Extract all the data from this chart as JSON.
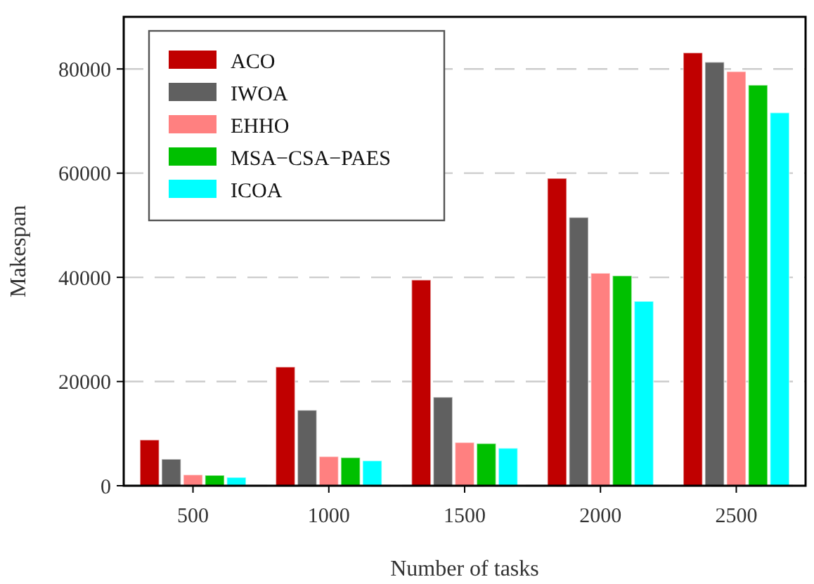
{
  "chart_data": {
    "type": "bar",
    "xlabel": "Number of tasks",
    "ylabel": "Makespan",
    "categories": [
      "500",
      "1000",
      "1500",
      "2000",
      "2500"
    ],
    "series": [
      {
        "name": "ACO",
        "color": "#c00000",
        "values": [
          8800,
          22800,
          39500,
          59000,
          83100
        ]
      },
      {
        "name": "IWOA",
        "color": "#606060",
        "values": [
          5100,
          14500,
          17000,
          51500,
          81300
        ]
      },
      {
        "name": "EHHO",
        "color": "#ff8080",
        "values": [
          2100,
          5600,
          8300,
          40800,
          79500
        ]
      },
      {
        "name": "MSA−CSA−PAES",
        "color": "#00c000",
        "values": [
          2000,
          5400,
          8100,
          40300,
          76900
        ]
      },
      {
        "name": "ICOA",
        "color": "#00ffff",
        "values": [
          1600,
          4800,
          7200,
          35400,
          71600
        ]
      }
    ],
    "ylim": [
      0,
      90000
    ],
    "yticks": [
      0,
      20000,
      40000,
      60000,
      80000
    ],
    "grid": "y",
    "legend": "top left"
  }
}
